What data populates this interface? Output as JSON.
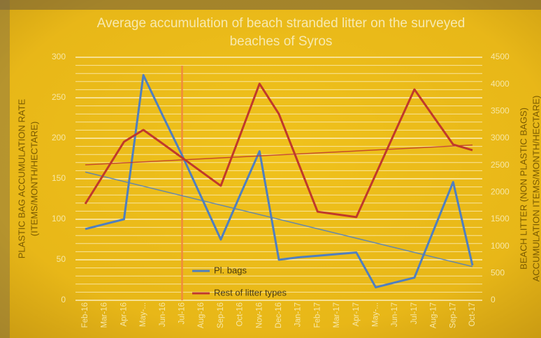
{
  "chart_data": {
    "type": "line",
    "title": [
      "Average accumulation of beach stranded litter on the surveyed",
      "beaches of Syros"
    ],
    "y_label": [
      "PLASTIC BAG ACCUMULATION RATE",
      "(ITEMS/MONTH/HECTARE)"
    ],
    "y2_label": [
      "BEACH  LITTER (NON PLASTIC BAGS)",
      "ACCUMULATION ITEMS/MONTH/HECTARE)"
    ],
    "categories": [
      "Feb-16",
      "Mar-16",
      "Apr-16",
      "May-...",
      "Jun-16",
      "Jul-16",
      "Aug-16",
      "Sep-16",
      "Oct-16",
      "Nov-16",
      "Dec-16",
      "Jan-17",
      "Feb-17",
      "Mar-17",
      "Apr-17",
      "May-...",
      "Jun-17",
      "Jul-17",
      "Aug-17",
      "Sep-17",
      "Oct-17"
    ],
    "series": [
      {
        "name": "Pl. bags",
        "color": "#4f7fc0",
        "values": [
          88,
          94,
          100,
          278,
          228,
          179,
          127,
          75,
          130,
          184,
          50,
          53,
          55,
          57,
          59,
          16,
          22,
          28,
          87,
          146,
          43
        ]
      },
      {
        "name": "Rest of litter types",
        "color": "#c0392b",
        "axis": "y2",
        "values": [
          1785,
          2360,
          2935,
          3155,
          2900,
          2640,
          2380,
          2120,
          3060,
          4010,
          3450,
          2545,
          1640,
          1590,
          1540,
          2330,
          3120,
          3905,
          3395,
          2885,
          2780
        ]
      }
    ],
    "ylim": [
      0,
      300
    ],
    "yticks": [
      0,
      50,
      100,
      150,
      200,
      250,
      300
    ],
    "y2lim": [
      0,
      4500
    ],
    "y2ticks": [
      0,
      500,
      1000,
      1500,
      2000,
      2500,
      3000,
      3500,
      4000,
      4500
    ],
    "grid": true,
    "minor_grid_step": 10,
    "trendlines": true,
    "vline_category": "Jul-16"
  }
}
